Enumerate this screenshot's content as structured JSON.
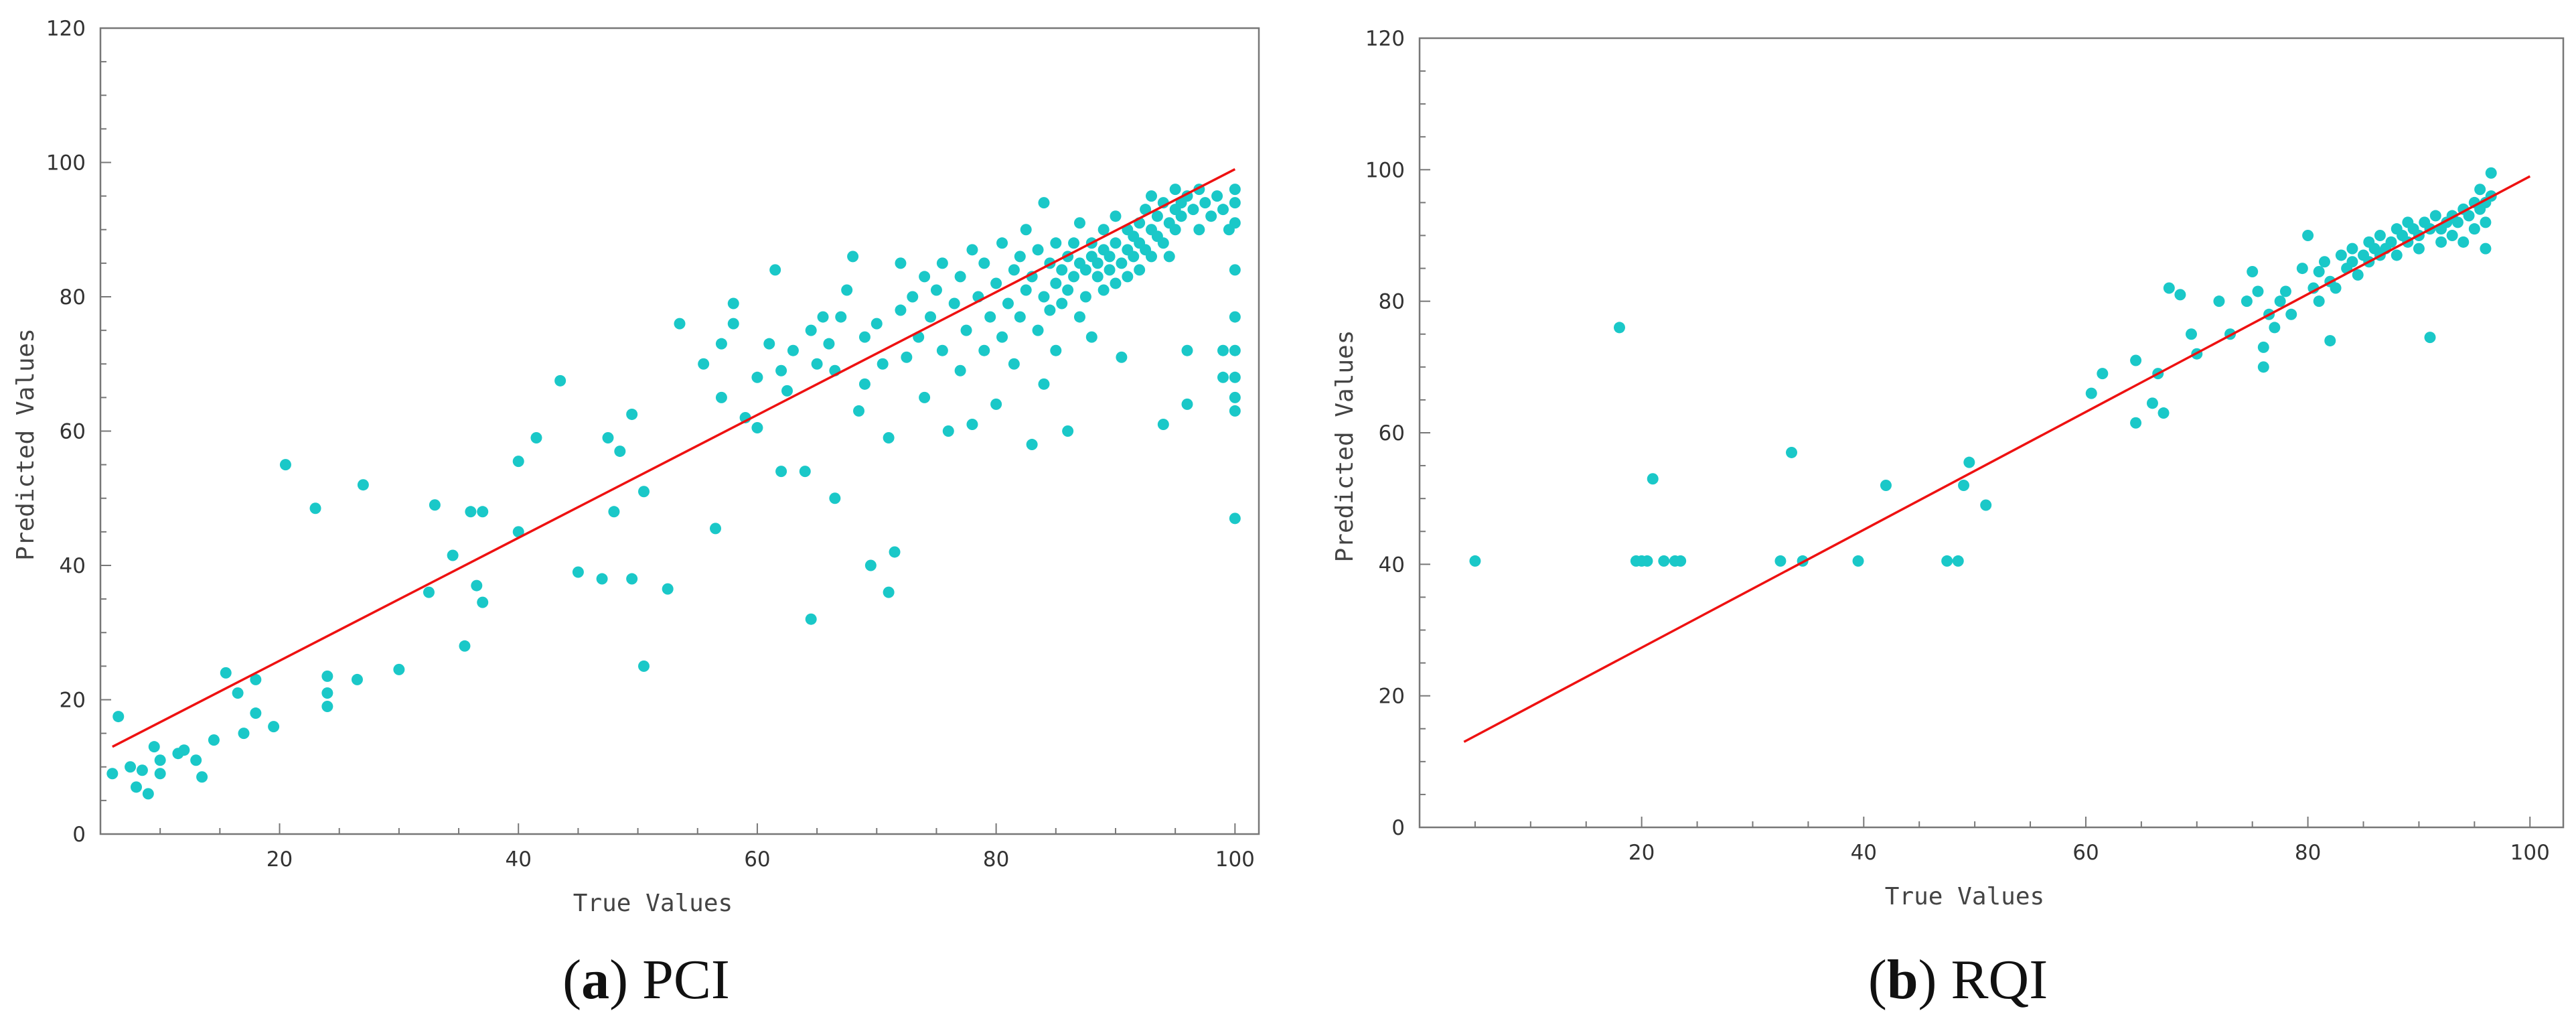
{
  "chart_data": [
    {
      "type": "scatter",
      "caption_letter": "a",
      "caption_text": "PCI",
      "xlabel": "True Values",
      "ylabel": "Predicted Values",
      "xlim": [
        5,
        102
      ],
      "ylim": [
        0,
        120
      ],
      "xticks": [
        20,
        40,
        60,
        80,
        100
      ],
      "yticks": [
        0,
        20,
        40,
        60,
        80,
        100,
        120
      ],
      "grid": false,
      "legend": "none",
      "point_color": "#1ac8c8",
      "fit_line_color": "#ee1111",
      "fit_line": [
        [
          6,
          13
        ],
        [
          100,
          99
        ]
      ],
      "points": [
        [
          6,
          9
        ],
        [
          6.5,
          17.5
        ],
        [
          7.5,
          10
        ],
        [
          8,
          7
        ],
        [
          8.5,
          9.5
        ],
        [
          9,
          6
        ],
        [
          9.5,
          13
        ],
        [
          10,
          11
        ],
        [
          10,
          9
        ],
        [
          11.5,
          12
        ],
        [
          12,
          12.5
        ],
        [
          13,
          11
        ],
        [
          13.5,
          8.5
        ],
        [
          14.5,
          14
        ],
        [
          15.5,
          24
        ],
        [
          16.5,
          21
        ],
        [
          17,
          15
        ],
        [
          18,
          23
        ],
        [
          18,
          18
        ],
        [
          19.5,
          16
        ],
        [
          20.5,
          55
        ],
        [
          23,
          48.5
        ],
        [
          24,
          23.5
        ],
        [
          24,
          21
        ],
        [
          24,
          19
        ],
        [
          26.5,
          23
        ],
        [
          27,
          52
        ],
        [
          30,
          24.5
        ],
        [
          32.5,
          36
        ],
        [
          33,
          49
        ],
        [
          34.5,
          41.5
        ],
        [
          35.5,
          28
        ],
        [
          36,
          48
        ],
        [
          36.5,
          37
        ],
        [
          37,
          48
        ],
        [
          37,
          34.5
        ],
        [
          40,
          45
        ],
        [
          40,
          55.5
        ],
        [
          41.5,
          59
        ],
        [
          43.5,
          67.5
        ],
        [
          45,
          39
        ],
        [
          47,
          38
        ],
        [
          47.5,
          59
        ],
        [
          48.5,
          57
        ],
        [
          48,
          48
        ],
        [
          49.5,
          62.5
        ],
        [
          49.5,
          38
        ],
        [
          50.5,
          51
        ],
        [
          50.5,
          25
        ],
        [
          52.5,
          36.5
        ],
        [
          53.5,
          76
        ],
        [
          55.5,
          70
        ],
        [
          56.5,
          45.5
        ],
        [
          57,
          65
        ],
        [
          57,
          73
        ],
        [
          58,
          79
        ],
        [
          58,
          76
        ],
        [
          59,
          62
        ],
        [
          60,
          60.5
        ],
        [
          60,
          68
        ],
        [
          61,
          73
        ],
        [
          61.5,
          84
        ],
        [
          62,
          69
        ],
        [
          62,
          54
        ],
        [
          62.5,
          66
        ],
        [
          63,
          72
        ],
        [
          64,
          54
        ],
        [
          64.5,
          75
        ],
        [
          64.5,
          32
        ],
        [
          65,
          70
        ],
        [
          65.5,
          77
        ],
        [
          66,
          73
        ],
        [
          66.5,
          50
        ],
        [
          66.5,
          69
        ],
        [
          67,
          77
        ],
        [
          67.5,
          81
        ],
        [
          68,
          86
        ],
        [
          68.5,
          63
        ],
        [
          69,
          74
        ],
        [
          69,
          67
        ],
        [
          69.5,
          40
        ],
        [
          70,
          76
        ],
        [
          70.5,
          70
        ],
        [
          71,
          59
        ],
        [
          71,
          36
        ],
        [
          71.5,
          42
        ],
        [
          72,
          78
        ],
        [
          72,
          85
        ],
        [
          72.5,
          71
        ],
        [
          73,
          80
        ],
        [
          73.5,
          74
        ],
        [
          74,
          65
        ],
        [
          74,
          83
        ],
        [
          74.5,
          77
        ],
        [
          75,
          81
        ],
        [
          75.5,
          72
        ],
        [
          75.5,
          85
        ],
        [
          76,
          60
        ],
        [
          76.5,
          79
        ],
        [
          77,
          69
        ],
        [
          77,
          83
        ],
        [
          77.5,
          75
        ],
        [
          78,
          61
        ],
        [
          78,
          87
        ],
        [
          78.5,
          80
        ],
        [
          79,
          72
        ],
        [
          79,
          85
        ],
        [
          79.5,
          77
        ],
        [
          80,
          64
        ],
        [
          80,
          82
        ],
        [
          80.5,
          74
        ],
        [
          80.5,
          88
        ],
        [
          81,
          79
        ],
        [
          81.5,
          84
        ],
        [
          81.5,
          70
        ],
        [
          82,
          86
        ],
        [
          82,
          77
        ],
        [
          82.5,
          81
        ],
        [
          82.5,
          90
        ],
        [
          83,
          58
        ],
        [
          83,
          83
        ],
        [
          83.5,
          87
        ],
        [
          83.5,
          75
        ],
        [
          84,
          80
        ],
        [
          84,
          94
        ],
        [
          84,
          67
        ],
        [
          84.5,
          85
        ],
        [
          84.5,
          78
        ],
        [
          85,
          82
        ],
        [
          85,
          88
        ],
        [
          85,
          72
        ],
        [
          85.5,
          84
        ],
        [
          85.5,
          79
        ],
        [
          86,
          86
        ],
        [
          86,
          60
        ],
        [
          86,
          81
        ],
        [
          86.5,
          88
        ],
        [
          86.5,
          83
        ],
        [
          87,
          85
        ],
        [
          87,
          77
        ],
        [
          87,
          91
        ],
        [
          87.5,
          84
        ],
        [
          87.5,
          80
        ],
        [
          88,
          86
        ],
        [
          88,
          88
        ],
        [
          88,
          74
        ],
        [
          88.5,
          83
        ],
        [
          88.5,
          85
        ],
        [
          89,
          87
        ],
        [
          89,
          81
        ],
        [
          89,
          90
        ],
        [
          89.5,
          84
        ],
        [
          89.5,
          86
        ],
        [
          90,
          88
        ],
        [
          90,
          82
        ],
        [
          90,
          92
        ],
        [
          90.5,
          85
        ],
        [
          90.5,
          71
        ],
        [
          91,
          87
        ],
        [
          91,
          90
        ],
        [
          91,
          83
        ],
        [
          91.5,
          89
        ],
        [
          91.5,
          86
        ],
        [
          92,
          91
        ],
        [
          92,
          84
        ],
        [
          92,
          88
        ],
        [
          92.5,
          93
        ],
        [
          92.5,
          87
        ],
        [
          93,
          90
        ],
        [
          93,
          86
        ],
        [
          93,
          95
        ],
        [
          93.5,
          89
        ],
        [
          93.5,
          92
        ],
        [
          94,
          88
        ],
        [
          94,
          94
        ],
        [
          94,
          61
        ],
        [
          94.5,
          91
        ],
        [
          94.5,
          86
        ],
        [
          95,
          93
        ],
        [
          95,
          96
        ],
        [
          95,
          90
        ],
        [
          95.5,
          94
        ],
        [
          95.5,
          92
        ],
        [
          96,
          95
        ],
        [
          96,
          64
        ],
        [
          96,
          72
        ],
        [
          96.5,
          93
        ],
        [
          97,
          96
        ],
        [
          97,
          90
        ],
        [
          97.5,
          94
        ],
        [
          98,
          92
        ],
        [
          98.5,
          95
        ],
        [
          99,
          68
        ],
        [
          99,
          72
        ],
        [
          99,
          93
        ],
        [
          99.5,
          90
        ],
        [
          100,
          96
        ],
        [
          100,
          94
        ],
        [
          100,
          91
        ],
        [
          100,
          84
        ],
        [
          100,
          77
        ],
        [
          100,
          72
        ],
        [
          100,
          68
        ],
        [
          100,
          65
        ],
        [
          100,
          63
        ],
        [
          100,
          47
        ]
      ]
    },
    {
      "type": "scatter",
      "caption_letter": "b",
      "caption_text": "RQI",
      "xlabel": "True Values",
      "ylabel": "Predicted Values",
      "xlim": [
        0,
        103
      ],
      "ylim": [
        0,
        120
      ],
      "xticks": [
        20,
        40,
        60,
        80,
        100
      ],
      "yticks": [
        0,
        20,
        40,
        60,
        80,
        100,
        120
      ],
      "grid": false,
      "legend": "none",
      "point_color": "#1ac8c8",
      "fit_line_color": "#ee1111",
      "fit_line": [
        [
          4,
          13
        ],
        [
          100,
          99
        ]
      ],
      "points": [
        [
          5,
          40.5
        ],
        [
          18,
          76
        ],
        [
          19.5,
          40.5
        ],
        [
          20,
          40.5
        ],
        [
          20.5,
          40.5
        ],
        [
          21,
          53
        ],
        [
          22,
          40.5
        ],
        [
          23,
          40.5
        ],
        [
          23.5,
          40.5
        ],
        [
          32.5,
          40.5
        ],
        [
          33.5,
          57
        ],
        [
          34.5,
          40.5
        ],
        [
          39.5,
          40.5
        ],
        [
          42,
          52
        ],
        [
          47.5,
          40.5
        ],
        [
          48.5,
          40.5
        ],
        [
          49,
          52
        ],
        [
          49.5,
          55.5
        ],
        [
          51,
          49
        ],
        [
          60.5,
          66
        ],
        [
          61.5,
          69
        ],
        [
          64.5,
          61.5
        ],
        [
          64.5,
          71
        ],
        [
          66,
          64.5
        ],
        [
          66.5,
          69
        ],
        [
          67,
          63
        ],
        [
          67.5,
          82
        ],
        [
          68.5,
          81
        ],
        [
          69.5,
          75
        ],
        [
          70,
          72
        ],
        [
          72,
          80
        ],
        [
          73,
          75
        ],
        [
          74.5,
          80
        ],
        [
          75,
          84.5
        ],
        [
          75.5,
          81.5
        ],
        [
          76,
          73
        ],
        [
          76,
          70
        ],
        [
          76.5,
          78
        ],
        [
          77,
          76
        ],
        [
          77.5,
          80
        ],
        [
          78,
          81.5
        ],
        [
          78.5,
          78
        ],
        [
          79.5,
          85
        ],
        [
          80,
          90
        ],
        [
          80.5,
          82
        ],
        [
          81,
          84.5
        ],
        [
          81,
          80
        ],
        [
          81.5,
          86
        ],
        [
          82,
          83
        ],
        [
          82,
          74
        ],
        [
          82.5,
          82
        ],
        [
          83,
          87
        ],
        [
          83.5,
          85
        ],
        [
          84,
          88
        ],
        [
          84,
          86
        ],
        [
          84.5,
          84
        ],
        [
          85,
          87
        ],
        [
          85.5,
          89
        ],
        [
          85.5,
          86
        ],
        [
          86,
          88
        ],
        [
          86.5,
          87
        ],
        [
          86.5,
          90
        ],
        [
          87,
          88
        ],
        [
          87.5,
          89
        ],
        [
          88,
          91
        ],
        [
          88,
          87
        ],
        [
          88.5,
          90
        ],
        [
          89,
          89
        ],
        [
          89,
          92
        ],
        [
          89.5,
          91
        ],
        [
          90,
          90
        ],
        [
          90,
          88
        ],
        [
          90.5,
          92
        ],
        [
          91,
          91
        ],
        [
          91,
          74.5
        ],
        [
          91.5,
          93
        ],
        [
          92,
          91
        ],
        [
          92,
          89
        ],
        [
          92.5,
          92
        ],
        [
          93,
          93
        ],
        [
          93,
          90
        ],
        [
          93.5,
          92
        ],
        [
          94,
          94
        ],
        [
          94,
          89
        ],
        [
          94.5,
          93
        ],
        [
          95,
          95
        ],
        [
          95,
          91
        ],
        [
          95.5,
          94
        ],
        [
          95.5,
          97
        ],
        [
          96,
          95
        ],
        [
          96,
          88
        ],
        [
          96,
          92
        ],
        [
          96.5,
          96
        ],
        [
          96.5,
          99.5
        ]
      ]
    }
  ]
}
